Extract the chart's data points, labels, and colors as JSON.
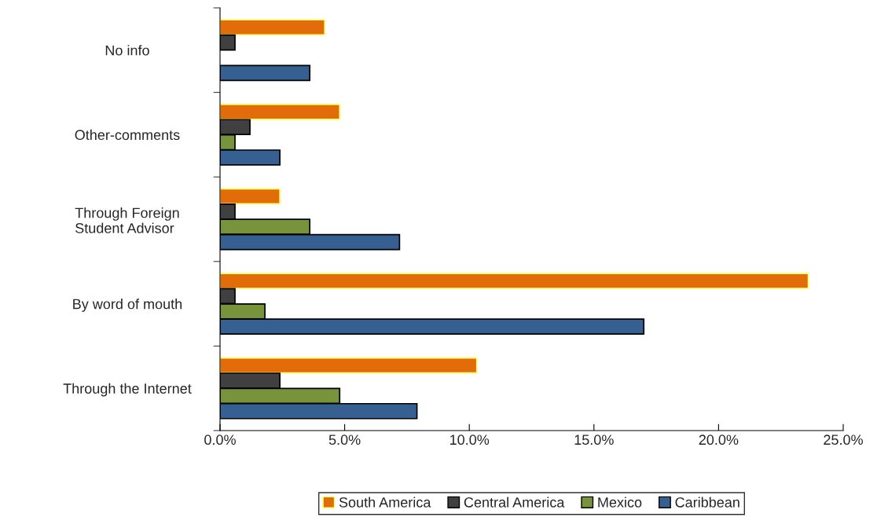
{
  "chart_data": {
    "type": "bar",
    "orientation": "horizontal",
    "categories": [
      "No info",
      "Other-comments",
      "Through Foreign\nStudent Advisor",
      "By word of mouth",
      "Through the Internet"
    ],
    "series": [
      {
        "name": "South America",
        "color": "#e36c0a",
        "values": [
          4.2,
          4.8,
          2.4,
          23.6,
          10.3
        ]
      },
      {
        "name": "Central America",
        "color": "#404040",
        "values": [
          0.6,
          1.2,
          0.6,
          0.6,
          2.4
        ]
      },
      {
        "name": "Mexico",
        "color": "#77933c",
        "values": [
          null,
          0.6,
          3.6,
          1.8,
          4.8
        ]
      },
      {
        "name": "Caribbean",
        "color": "#366092",
        "values": [
          3.6,
          2.4,
          7.2,
          17.0,
          7.9
        ]
      }
    ],
    "xlim": [
      0,
      25
    ],
    "xticks": [
      {
        "value": 0,
        "label": "0.0%"
      },
      {
        "value": 5,
        "label": "5.0%"
      },
      {
        "value": 10,
        "label": "10.0%"
      },
      {
        "value": 15,
        "label": "15.0%"
      },
      {
        "value": 20,
        "label": "20.0%"
      },
      {
        "value": 25,
        "label": "25.0%"
      }
    ],
    "grid": false,
    "legend": "bottom"
  }
}
